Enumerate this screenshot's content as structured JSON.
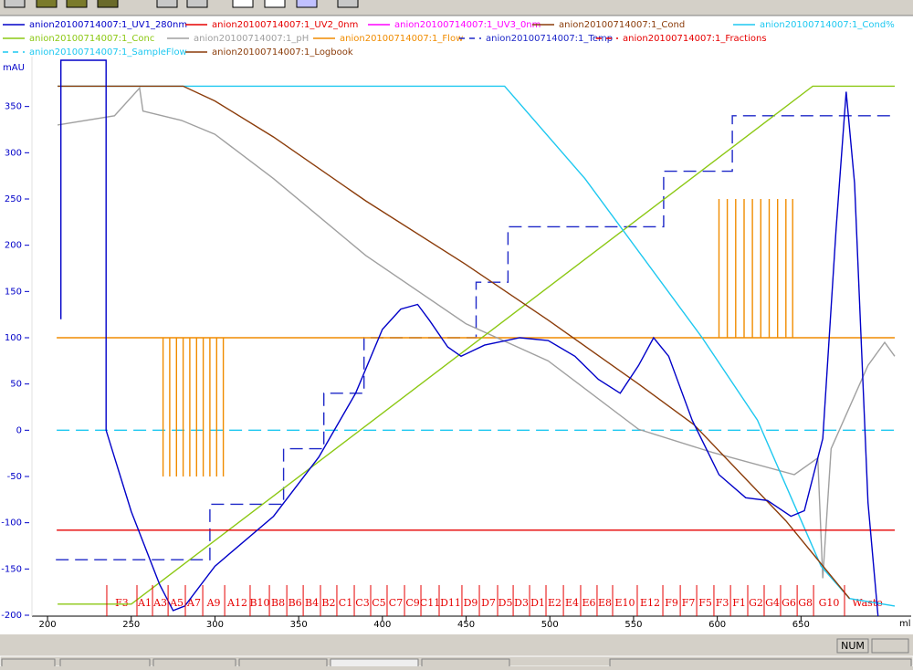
{
  "chart_data": {
    "type": "line",
    "y_label": "mAU",
    "x_label": "ml",
    "xlim": [
      190.7,
      715.8
    ],
    "ylim": [
      -201,
      400
    ],
    "xticks": [
      200,
      250,
      300,
      350,
      400,
      450,
      500,
      550,
      600,
      650
    ],
    "yticks": [
      350,
      300,
      250,
      200,
      150,
      100,
      50,
      0,
      -50,
      -100,
      -150,
      -200
    ],
    "series": [
      {
        "name": "anion20100714007:1_UV1_280nm",
        "color": "#0000c8",
        "style": "solid",
        "x": [
          208,
          208,
          235,
          235,
          250,
          267,
          275,
          282,
          300,
          335,
          362,
          384,
          400,
          411,
          421,
          428,
          439,
          447,
          461,
          482,
          499,
          515,
          529,
          542,
          553,
          562,
          571,
          585,
          601,
          617,
          630,
          644,
          652,
          663,
          671,
          677,
          682,
          690,
          696
        ],
        "values": [
          120,
          400,
          400,
          0,
          -88,
          -167,
          -195,
          -190,
          -147,
          -93,
          -29,
          40,
          109,
          131,
          136,
          119,
          90,
          80,
          92,
          100,
          97,
          80,
          55,
          40,
          70,
          100,
          80,
          11,
          -48,
          -73,
          -76,
          -93,
          -87,
          -9,
          218,
          366,
          267,
          -78,
          -201
        ]
      },
      {
        "name": "anion20100714007:1_UV2_0nm",
        "color": "#e60000",
        "style": "solid",
        "x": [
          205.5,
          706
        ],
        "values": [
          -108,
          -108
        ]
      },
      {
        "name": "anion20100714007:1_UV3_0nm",
        "color": "#ff00ff",
        "style": "solid",
        "x": [],
        "values": []
      },
      {
        "name": "anion20100714007:1_Cond",
        "color": "#8b3c0a",
        "style": "solid",
        "x": [
          206,
          281,
          300,
          335,
          390,
          450,
          499,
          553,
          586,
          641,
          679
        ],
        "values": [
          372,
          372,
          356,
          317,
          248,
          179,
          119,
          50,
          6,
          -98,
          -182
        ]
      },
      {
        "name": "anion20100714007:1_Cond%",
        "color": "#1ec8f0",
        "style": "solid",
        "x": [
          206,
          473,
          521,
          591,
          624,
          662,
          679,
          706
        ],
        "values": [
          372,
          372,
          272,
          100,
          11,
          -147,
          -182,
          -190
        ]
      },
      {
        "name": "anion20100714007:1_Conc",
        "color": "#8cc814",
        "style": "solid",
        "x": [
          206,
          250,
          657,
          706
        ],
        "values": [
          -188,
          -188,
          372,
          372
        ]
      },
      {
        "name": "anion20100714007:1_pH",
        "color": "#a0a0a0",
        "style": "solid",
        "x": [
          206,
          240,
          255,
          257,
          280,
          300,
          335,
          390,
          450,
          499,
          553,
          597,
          646,
          660,
          663,
          668,
          690,
          700,
          706
        ],
        "values": [
          330,
          340,
          370,
          345,
          335,
          320,
          272,
          189,
          115,
          75,
          1,
          -24,
          -48,
          -30,
          -160,
          -20,
          70,
          95,
          80
        ]
      },
      {
        "name": "anion20100714007:1_Flow",
        "color": "#f08c00",
        "style": "solid",
        "x": [
          205.5,
          269,
          269,
          269,
          273,
          273,
          273,
          277,
          277,
          277,
          281,
          281,
          281,
          285,
          285,
          285,
          289,
          289,
          289,
          293,
          293,
          293,
          297,
          297,
          297,
          301,
          301,
          301,
          305,
          305,
          305,
          601,
          601,
          601,
          606,
          606,
          606,
          611,
          611,
          611,
          616,
          616,
          616,
          621,
          621,
          621,
          626,
          626,
          626,
          631,
          631,
          631,
          636,
          636,
          636,
          641,
          641,
          641,
          645,
          645,
          645,
          706
        ],
        "values": [
          100,
          100,
          -50,
          100,
          100,
          -50,
          100,
          100,
          -50,
          100,
          100,
          -50,
          100,
          100,
          -50,
          100,
          100,
          -50,
          100,
          100,
          -50,
          100,
          100,
          -50,
          100,
          100,
          -50,
          100,
          100,
          -50,
          100,
          100,
          250,
          100,
          100,
          250,
          100,
          100,
          250,
          100,
          100,
          250,
          100,
          100,
          250,
          100,
          100,
          250,
          100,
          100,
          250,
          100,
          100,
          250,
          100,
          100,
          250,
          100,
          100,
          250,
          100,
          100
        ]
      },
      {
        "name": "anion20100714007:1_Temp",
        "color": "#1e28c8",
        "style": "dashed",
        "x": [
          205,
          297,
          297,
          341,
          341,
          365,
          365,
          389,
          389,
          456,
          456,
          475,
          475,
          568,
          568,
          609,
          609,
          706
        ],
        "values": [
          -140,
          -140,
          -80,
          -80,
          -20,
          -20,
          40,
          40,
          100,
          100,
          160,
          160,
          220,
          220,
          280,
          280,
          340,
          340
        ]
      },
      {
        "name": "anion20100714007:1_Fractions",
        "color": "#e60000",
        "style": "dashed",
        "x": [
          235.4,
          253.4,
          262.7,
          272.0,
          282.3,
          292.7,
          305.8,
          321.0,
          332.5,
          342.9,
          352.7,
          363.0,
          372.8,
          383.2,
          393.0,
          402.8,
          413.2,
          423.0,
          433.9,
          447.5,
          457.9,
          468.8,
          478.1,
          487.9,
          497.7,
          508.1,
          518.4,
          528.2,
          537.5,
          552.2,
          567.5,
          577.9,
          587.7,
          598.0,
          607.9,
          618.2,
          628.0,
          637.8,
          647.7,
          657.5,
          676.0
        ],
        "labels": [
          "F3",
          "A1",
          "A3",
          "A5",
          "A7",
          "A9",
          "A12",
          "B10",
          "B8",
          "B6",
          "B4",
          "B2",
          "C1",
          "C3",
          "C5",
          "C7",
          "C9",
          "C11",
          "D11",
          "D9",
          "D7",
          "D5",
          "D3",
          "D1",
          "E2",
          "E4",
          "E6",
          "E8",
          "E10",
          "E12",
          "F9",
          "F7",
          "F5",
          "F3",
          "F1",
          "G2",
          "G4",
          "G6",
          "G8",
          "G10",
          "Waste"
        ]
      },
      {
        "name": "anion20100714007:1_SampleFlow",
        "color": "#1ec8f0",
        "style": "dashed",
        "x": [
          205.5,
          706
        ],
        "values": [
          0,
          0
        ]
      },
      {
        "name": "anion20100714007:1_Logbook",
        "color": "#8b3c0a",
        "style": "solid",
        "x": [],
        "values": []
      }
    ]
  },
  "status_bar": {
    "num": "NUM"
  }
}
